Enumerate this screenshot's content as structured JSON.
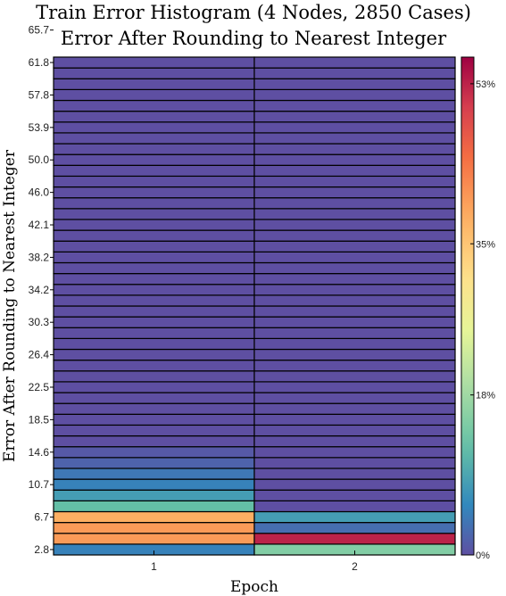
{
  "chart_data": {
    "type": "heatmap",
    "title": "Train Error Histogram (4 Nodes, 2850 Cases)",
    "subtitle": "Error After Rounding to Nearest Integer",
    "xlabel": "Epoch",
    "ylabel": "Error After Rounding to Nearest Integer",
    "x_categories": [
      "1",
      "2"
    ],
    "y_tick_labels": [
      "2.8",
      "6.7",
      "10.7",
      "14.6",
      "18.5",
      "22.5",
      "26.4",
      "30.3",
      "34.2",
      "38.2",
      "42.1",
      "46.0",
      "50.0",
      "53.9",
      "57.8",
      "61.8",
      "65.7"
    ],
    "y_bin_count": 46,
    "y_bin_note": "bins ordered bottom to top; values are percent of cases",
    "values": [
      [
        5,
        15
      ],
      [
        40,
        53
      ],
      [
        40,
        3
      ],
      [
        38,
        8
      ],
      [
        12,
        0
      ],
      [
        8,
        0
      ],
      [
        5,
        0
      ],
      [
        4,
        0
      ],
      [
        2,
        0
      ],
      [
        1,
        0
      ],
      [
        0,
        0
      ],
      [
        0,
        0
      ],
      [
        0,
        0
      ],
      [
        0,
        0
      ],
      [
        0,
        0
      ],
      [
        0,
        0
      ],
      [
        0,
        0
      ],
      [
        0,
        0
      ],
      [
        0,
        0
      ],
      [
        0,
        0
      ],
      [
        0,
        0
      ],
      [
        0,
        0
      ],
      [
        0,
        0
      ],
      [
        0,
        0
      ],
      [
        0,
        0
      ],
      [
        0,
        0
      ],
      [
        0,
        0
      ],
      [
        0,
        0
      ],
      [
        0,
        0
      ],
      [
        0,
        0
      ],
      [
        0,
        0
      ],
      [
        0,
        0
      ],
      [
        0,
        0
      ],
      [
        0,
        0
      ],
      [
        0,
        0
      ],
      [
        0,
        0
      ],
      [
        0,
        0
      ],
      [
        0,
        0
      ],
      [
        0,
        0
      ],
      [
        0,
        0
      ],
      [
        0,
        0
      ],
      [
        0,
        0
      ],
      [
        0,
        0
      ],
      [
        0,
        0
      ],
      [
        0,
        0
      ],
      [
        0,
        0
      ]
    ],
    "colorbar": {
      "min": 0,
      "max": 56,
      "tick_values": [
        0,
        18,
        35,
        53
      ],
      "tick_labels": [
        "0%",
        "18%",
        "35%",
        "53%"
      ],
      "colormap": "spectral-reversed"
    }
  }
}
